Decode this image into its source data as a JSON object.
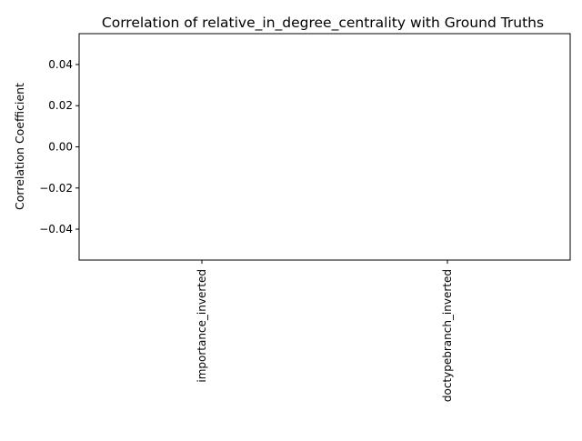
{
  "chart_data": {
    "type": "bar",
    "title": "Correlation of relative_in_degree_centrality with Ground Truths",
    "xlabel": "",
    "ylabel": "Correlation Coefficient",
    "categories": [
      "importance_inverted",
      "doctypebranch_inverted"
    ],
    "values": [
      0,
      0
    ],
    "ylim": [
      -0.055,
      0.055
    ],
    "yticks": [
      0.04,
      0.02,
      0.0,
      -0.02,
      -0.04
    ],
    "ytick_labels": [
      "0.04",
      "0.02",
      "0.00",
      "−0.02",
      "−0.04"
    ],
    "grid": false,
    "legend": "none",
    "colors": {
      "axis": "#000000",
      "bar": "#1f77b4",
      "background": "#ffffff"
    }
  }
}
